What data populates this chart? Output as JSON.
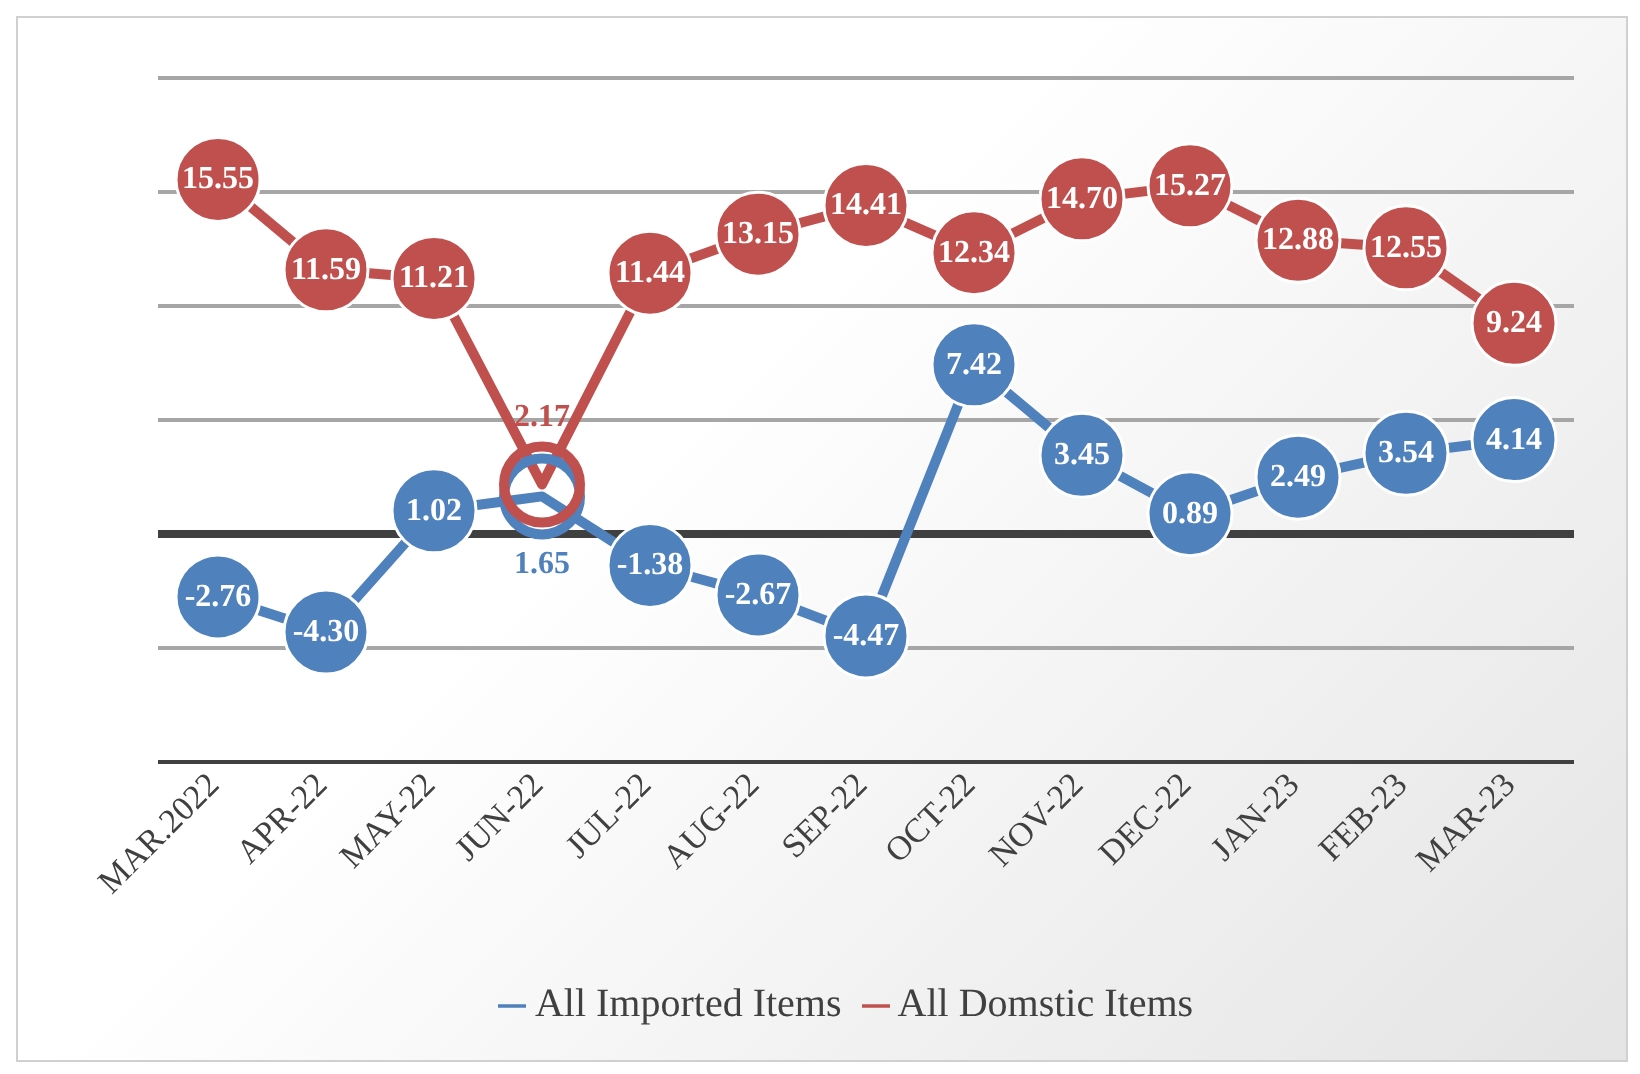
{
  "chart_data": {
    "type": "line",
    "categories": [
      "MAR.2022",
      "APR-22",
      "MAY-22",
      "JUN-22",
      "JUL-22",
      "AUG-22",
      "SEP-22",
      "OCT-22",
      "NOV-22",
      "DEC-22",
      "JAN-23",
      "FEB-23",
      "MAR-23"
    ],
    "series": [
      {
        "name": "All Imported Items",
        "color": "#4f81bd",
        "values": [
          -2.76,
          -4.3,
          1.02,
          1.65,
          -1.38,
          -2.67,
          -4.47,
          7.42,
          3.45,
          0.89,
          2.49,
          3.54,
          4.14
        ],
        "value_labels": [
          "-2.76",
          "-4.30",
          "1.02",
          "1.65",
          "-1.38",
          "-2.67",
          "-4.47",
          "7.42",
          "3.45",
          "0.89",
          "2.49",
          "3.54",
          "4.14"
        ]
      },
      {
        "name": "All Domstic Items",
        "color": "#c0504d",
        "values": [
          15.55,
          11.59,
          11.21,
          2.17,
          11.44,
          13.15,
          14.41,
          12.34,
          14.7,
          15.27,
          12.88,
          12.55,
          9.24
        ],
        "value_labels": [
          "15.55",
          "11.59",
          "11.21",
          "2.17",
          "11.44",
          "13.15",
          "14.41",
          "12.34",
          "14.70",
          "15.27",
          "12.88",
          "12.55",
          "9.24"
        ]
      }
    ],
    "ylim": [
      -10,
      20
    ],
    "yticks": [
      {
        "value": -10,
        "label": null
      },
      {
        "value": -5,
        "label": null
      },
      {
        "value": 0,
        "label": null
      },
      {
        "value": 5,
        "label": null
      },
      {
        "value": 10,
        "label": null
      },
      {
        "value": 15,
        "label": null
      },
      {
        "value": 20,
        "label": null
      }
    ],
    "tick_labels": "x",
    "grid": "y",
    "legend": "bottom",
    "marker": "circle",
    "line_style": "solid"
  }
}
